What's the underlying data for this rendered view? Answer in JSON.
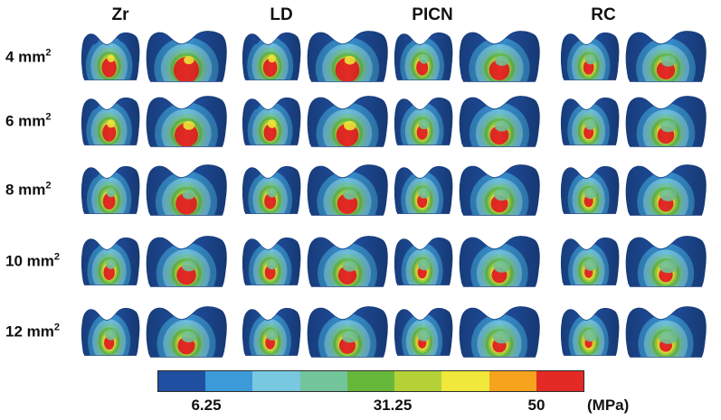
{
  "columns": [
    {
      "label": "Zr"
    },
    {
      "label": "LD"
    },
    {
      "label": "PICN"
    },
    {
      "label": "RC"
    }
  ],
  "rows": [
    {
      "label": "4 mm",
      "sup": "2",
      "hotspot_level": 1.0
    },
    {
      "label": "6 mm",
      "sup": "2",
      "hotspot_level": 0.92
    },
    {
      "label": "8 mm",
      "sup": "2",
      "hotspot_level": 0.84
    },
    {
      "label": "10 mm",
      "sup": "2",
      "hotspot_level": 0.76
    },
    {
      "label": "12 mm",
      "sup": "2",
      "hotspot_level": 0.68
    }
  ],
  "material_intensity": [
    1.0,
    0.95,
    0.8,
    0.72
  ],
  "legend": {
    "colors": [
      "#1f4fa0",
      "#3c9ad8",
      "#78c8e0",
      "#72c49a",
      "#66b83a",
      "#b4d238",
      "#f0e83a",
      "#f6a41e",
      "#e42a24"
    ],
    "ticks": [
      {
        "label": "6.25"
      },
      {
        "label": "31.25"
      },
      {
        "label": "50"
      }
    ],
    "unit": "(MPa)"
  },
  "stress_colors": {
    "base": "#1f4fa0",
    "mid_blue": "#3c9ad8",
    "light_blue": "#78c8e0",
    "teal": "#72c49a",
    "green": "#66b83a",
    "yellow_green": "#b4d238",
    "yellow": "#f0e83a",
    "orange": "#f6a41e",
    "red": "#e42a24"
  }
}
